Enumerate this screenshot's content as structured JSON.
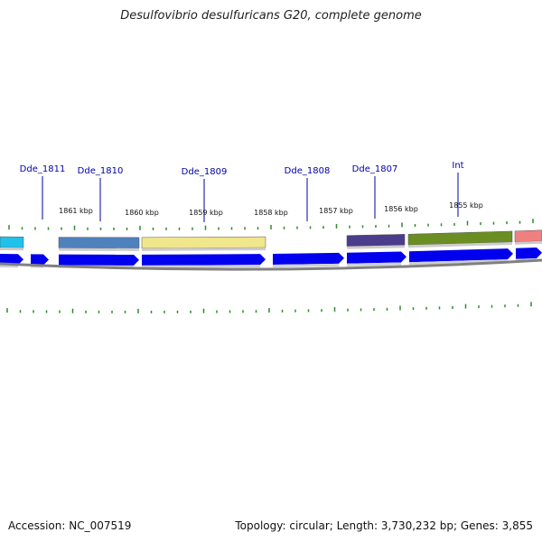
{
  "title": "Desulfovibrio desulfuricans G20, complete genome",
  "footer": {
    "accession": "Accession: NC_007519",
    "summary": "Topology: circular; Length: 3,730,232 bp; Genes: 3,855"
  },
  "colors": {
    "cds_blue": "#0000ee",
    "backbone": "#808080",
    "gene_label": "#0000aa",
    "tick": "#2e8b2e"
  },
  "tick_labels": [
    "1861 kbp",
    "1860 kbp",
    "1859 kbp",
    "1858 kbp",
    "1857 kbp",
    "1856 kbp",
    "1855 kbp"
  ],
  "gene_labels": [
    "Dde_1811",
    "Dde_1810",
    "Dde_1809",
    "Dde_1808",
    "Dde_1807",
    "Int"
  ],
  "feature_colors": [
    "#20c0e8",
    "#4f81bd",
    "#f0e68c",
    "#4b3c8c",
    "#6b8e23",
    "#f08080"
  ]
}
